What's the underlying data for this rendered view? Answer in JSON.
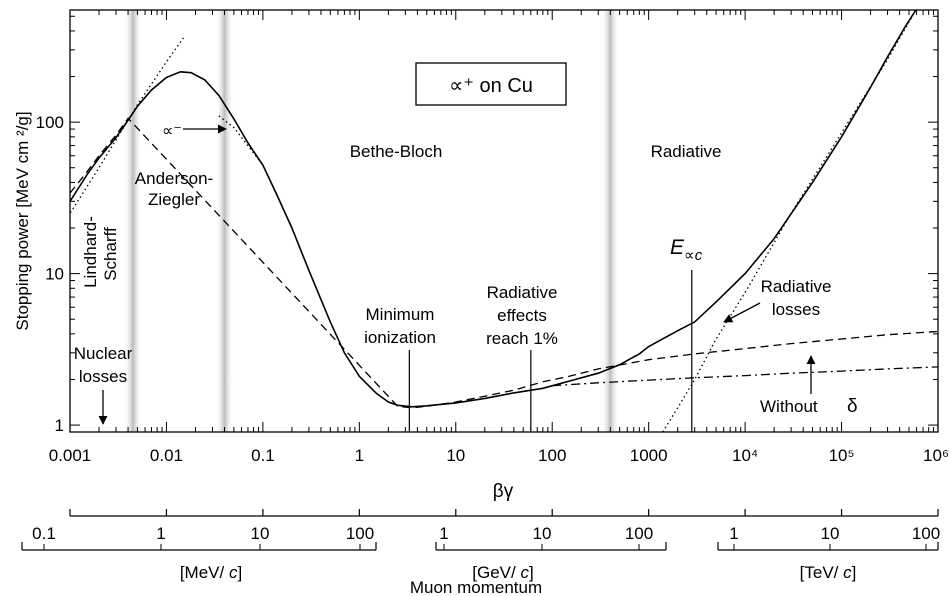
{
  "chart_data": {
    "type": "line",
    "xscale": "log",
    "yscale": "log",
    "xlabel": "βγ",
    "ylabel": "Stopping power [MeV cm ²/g]",
    "xlim": [
      0.001,
      1000000
    ],
    "ylim": [
      0.9,
      550
    ],
    "x_ticks": [
      "0.001",
      "0.01",
      "0.1",
      "1",
      "10",
      "100",
      "1000",
      "10⁴",
      "10⁵",
      "10⁶"
    ],
    "y_ticks": [
      "1",
      "10",
      "100"
    ],
    "legend_box": "∝⁺ on Cu",
    "series": [
      {
        "style": "solid",
        "points": [
          [
            0.001,
            30
          ],
          [
            0.0015,
            45
          ],
          [
            0.002,
            58
          ],
          [
            0.003,
            79
          ],
          [
            0.004,
            103
          ],
          [
            0.005,
            127
          ],
          [
            0.007,
            163
          ],
          [
            0.01,
            197
          ],
          [
            0.014,
            215
          ],
          [
            0.018,
            212
          ],
          [
            0.025,
            190
          ],
          [
            0.035,
            150
          ],
          [
            0.05,
            105
          ],
          [
            0.07,
            73
          ],
          [
            0.1,
            52
          ],
          [
            0.14,
            33
          ],
          [
            0.2,
            20
          ],
          [
            0.3,
            10.5
          ],
          [
            0.5,
            4.8
          ],
          [
            0.7,
            3
          ],
          [
            1,
            2.1
          ],
          [
            1.5,
            1.62
          ],
          [
            2,
            1.42
          ],
          [
            2.5,
            1.35
          ],
          [
            3.5,
            1.32
          ],
          [
            5,
            1.34
          ],
          [
            10,
            1.4
          ],
          [
            20,
            1.5
          ],
          [
            40,
            1.63
          ],
          [
            80,
            1.75
          ],
          [
            150,
            1.95
          ],
          [
            300,
            2.2
          ],
          [
            500,
            2.5
          ],
          [
            800,
            2.95
          ],
          [
            1000,
            3.3
          ],
          [
            1500,
            3.8
          ],
          [
            2000,
            4.2
          ],
          [
            3000,
            4.8
          ],
          [
            5000,
            6.5
          ],
          [
            10000,
            10
          ],
          [
            20000,
            17
          ],
          [
            50000,
            40
          ],
          [
            100000,
            80
          ],
          [
            200000,
            170
          ],
          [
            300000,
            270
          ],
          [
            450000,
            420
          ],
          [
            600000,
            560
          ]
        ]
      },
      {
        "style": "dashed",
        "points": [
          [
            0.001,
            34
          ],
          [
            0.0015,
            47
          ],
          [
            0.002,
            60
          ],
          [
            0.003,
            82
          ],
          [
            0.004,
            106
          ],
          [
            2.5,
            1.33
          ],
          [
            3.5,
            1.3
          ],
          [
            5,
            1.33
          ],
          [
            10,
            1.42
          ],
          [
            20,
            1.55
          ],
          [
            40,
            1.7
          ],
          [
            80,
            1.93
          ],
          [
            150,
            2.1
          ],
          [
            300,
            2.35
          ],
          [
            1000,
            2.7
          ],
          [
            3000,
            2.95
          ],
          [
            10000,
            3.2
          ],
          [
            30000,
            3.45
          ],
          [
            100000,
            3.7
          ],
          [
            300000,
            3.95
          ],
          [
            1000000,
            4.15
          ]
        ]
      },
      {
        "style": "dashdot",
        "points": [
          [
            100,
            1.82
          ],
          [
            300,
            1.9
          ],
          [
            1000,
            1.98
          ],
          [
            3000,
            2.05
          ],
          [
            10000,
            2.12
          ],
          [
            30000,
            2.2
          ],
          [
            100000,
            2.27
          ],
          [
            300000,
            2.35
          ],
          [
            1000000,
            2.42
          ]
        ]
      },
      {
        "style": "dotted",
        "points": [
          [
            1400,
            0.9
          ],
          [
            2000,
            1.3
          ],
          [
            3000,
            2
          ],
          [
            5000,
            3.7
          ],
          [
            10000,
            7.5
          ],
          [
            30000,
            25
          ],
          [
            100000,
            85
          ],
          [
            300000,
            260
          ],
          [
            600000,
            560
          ]
        ]
      },
      {
        "style": "dotted",
        "points": [
          [
            0.0008,
            20
          ],
          [
            0.002,
            50
          ],
          [
            0.005,
            130
          ],
          [
            0.01,
            250
          ],
          [
            0.015,
            360
          ]
        ]
      },
      {
        "style": "dotted",
        "points": [
          [
            0.035,
            110
          ],
          [
            0.05,
            92
          ],
          [
            0.07,
            70
          ],
          [
            0.1,
            52
          ]
        ]
      }
    ],
    "shaded_bands_x": [
      0.0045,
      0.04,
      400
    ],
    "vertical_markers_x": [
      3.3,
      60,
      2800
    ],
    "annotations": [
      "Lindhard-",
      "Scharff",
      "Anderson-",
      "Ziegler",
      "Bethe-Bloch",
      "Radiative",
      "Minimum",
      "ionization",
      "Radiative",
      "effects",
      "reach 1%",
      "E",
      "∝c",
      "Radiative",
      "losses",
      "Without",
      "δ",
      "Nuclear",
      "losses",
      "∝⁻"
    ],
    "momentum_axes": [
      {
        "ticks": [
          "0.1",
          "1",
          "10",
          "100"
        ],
        "unit": "[MeV/",
        "unit_c": "c",
        "unit_close": "]"
      },
      {
        "ticks": [
          "1",
          "10",
          "100"
        ],
        "unit": "[GeV/",
        "unit_c": "c",
        "unit_close": "]"
      },
      {
        "ticks": [
          "1",
          "10",
          "100"
        ],
        "unit": "[TeV/",
        "unit_c": "c",
        "unit_close": "]"
      }
    ],
    "momentum_label": "Muon momentum"
  }
}
